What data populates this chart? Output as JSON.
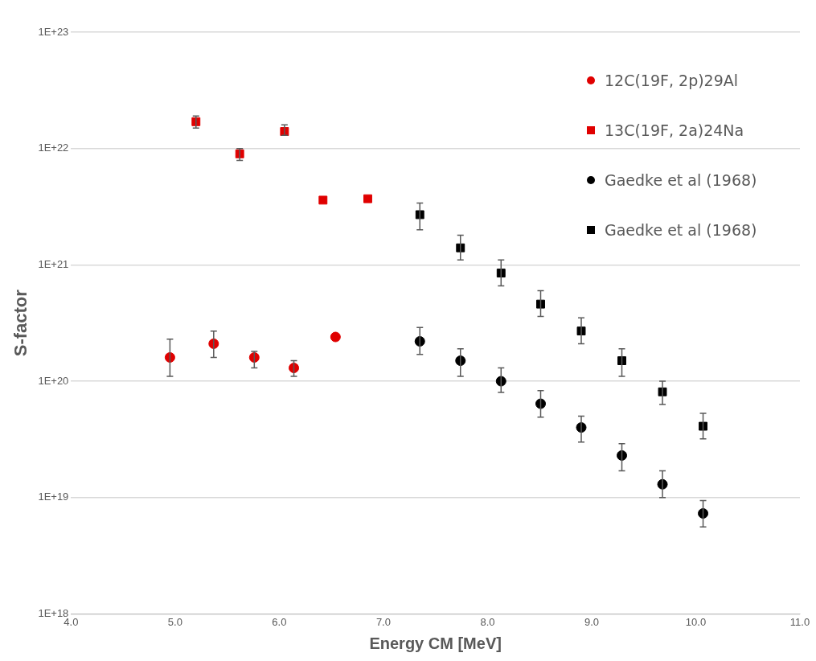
{
  "chart_data": {
    "type": "scatter",
    "xlabel": "Energy CM [MeV]",
    "ylabel": "S-factor",
    "log": "y",
    "grid": "y",
    "legend": "top right",
    "xlim": [
      4,
      11
    ],
    "xticks": [
      {
        "value": 4,
        "label": "4.0"
      },
      {
        "value": 5,
        "label": "5.0"
      },
      {
        "value": 6,
        "label": "6.0"
      },
      {
        "value": 7,
        "label": "7.0"
      },
      {
        "value": 8,
        "label": "8.0"
      },
      {
        "value": 9,
        "label": "9.0"
      },
      {
        "value": 10,
        "label": "10.0"
      },
      {
        "value": 11,
        "label": "11.0"
      }
    ],
    "ylim": [
      1e+18,
      1e+23
    ],
    "yticks": [
      {
        "value": 1e+18,
        "label": "1E+18"
      },
      {
        "value": 1e+19,
        "label": "1E+19"
      },
      {
        "value": 1e+20,
        "label": "1E+20"
      },
      {
        "value": 1e+21,
        "label": "1E+21"
      },
      {
        "value": 1e+22,
        "label": "1E+22"
      },
      {
        "value": 1e+23,
        "label": "1E+23"
      }
    ],
    "series": [
      {
        "name": "12C(19F, 2p)29Al",
        "color": "#e00000",
        "marker": "circle",
        "x": [
          4.95,
          5.37,
          5.76,
          6.14,
          6.54
        ],
        "values": [
          1.6e+20,
          2.1e+20,
          1.6e+20,
          1.3e+20,
          2.4e+20
        ],
        "errors": [
          [
            1.1e+20,
            2.3e+20
          ],
          [
            1.6e+20,
            2.7e+20
          ],
          [
            1.3e+20,
            1.8e+20
          ],
          [
            1.1e+20,
            1.5e+20
          ],
          null
        ]
      },
      {
        "name": "13C(19F, 2a)24Na",
        "color": "#e00000",
        "marker": "square",
        "x": [
          5.2,
          5.62,
          6.05,
          6.42,
          6.85
        ],
        "values": [
          1.7e+22,
          9e+21,
          1.4e+22,
          3.6e+21,
          3.7e+21
        ],
        "errors": [
          [
            1.5e+22,
            1.9e+22
          ],
          [
            7.9e+21,
            1e+22
          ],
          [
            1.3e+22,
            1.6e+22
          ],
          null,
          null
        ]
      },
      {
        "name": "Gaedke et al (1968)",
        "color": "#000000",
        "marker": "circle",
        "x": [
          7.35,
          7.74,
          8.13,
          8.51,
          8.9,
          9.29,
          9.68,
          10.07
        ],
        "values": [
          2.2e+20,
          1.5e+20,
          1e+20,
          6.4e+19,
          4e+19,
          2.3e+19,
          1.3e+19,
          7.3e+18
        ],
        "errors": [
          [
            1.7e+20,
            2.9e+20
          ],
          [
            1.1e+20,
            1.9e+20
          ],
          [
            8e+19,
            1.3e+20
          ],
          [
            4.9e+19,
            8.3e+19
          ],
          [
            3e+19,
            5e+19
          ],
          [
            1.7e+19,
            2.9e+19
          ],
          [
            1e+19,
            1.7e+19
          ],
          [
            5.6e+18,
            9.4e+18
          ]
        ]
      },
      {
        "name": "Gaedke et al (1968)",
        "color": "#000000",
        "marker": "square",
        "x": [
          7.35,
          7.74,
          8.13,
          8.51,
          8.9,
          9.29,
          9.68,
          10.07
        ],
        "values": [
          2.7e+21,
          1.4e+21,
          8.5e+20,
          4.6e+20,
          2.7e+20,
          1.5e+20,
          8.1e+19,
          4.1e+19
        ],
        "errors": [
          [
            2e+21,
            3.4e+21
          ],
          [
            1.1e+21,
            1.8e+21
          ],
          [
            6.6e+20,
            1.1e+21
          ],
          [
            3.6e+20,
            6e+20
          ],
          [
            2.1e+20,
            3.5e+20
          ],
          [
            1.1e+20,
            1.9e+20
          ],
          [
            6.3e+19,
            1e+20
          ],
          [
            3.2e+19,
            5.3e+19
          ]
        ]
      }
    ]
  }
}
